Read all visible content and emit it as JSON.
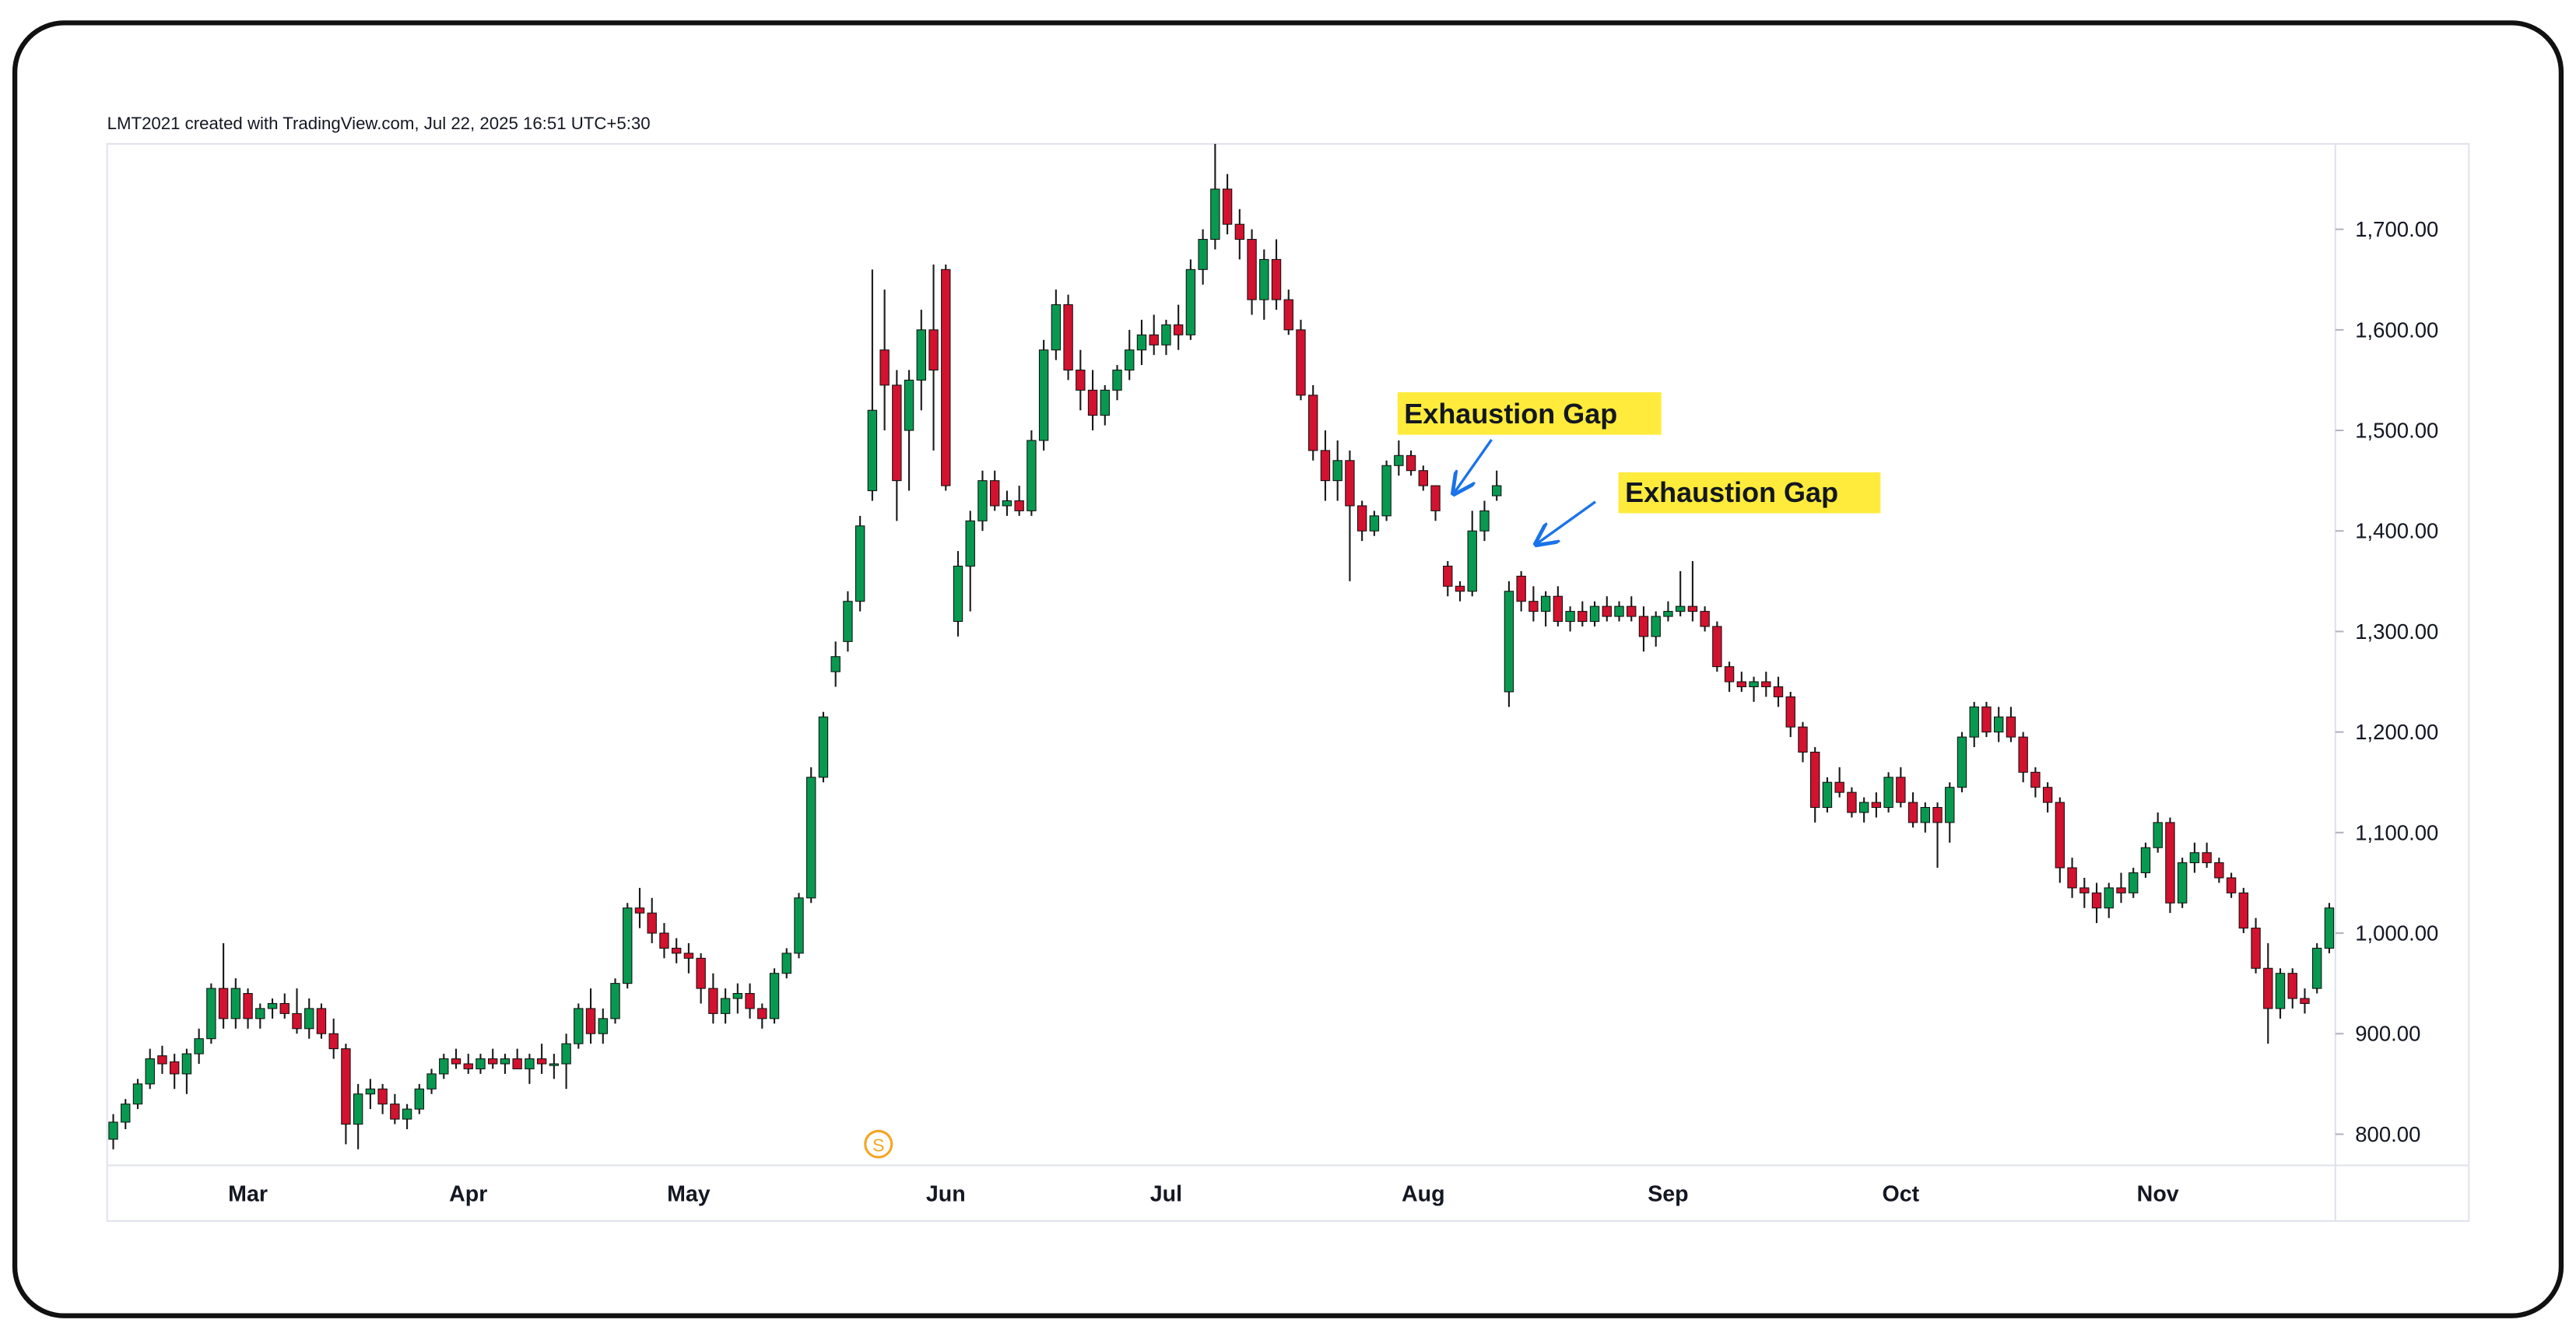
{
  "chart_data": {
    "type": "candlestick",
    "watermark": "LMT2021 created with TradingView.com, Jul 22, 2025 16:51 UTC+5:30",
    "annotations": [
      "Exhaustion Gap",
      "Exhaustion Gap"
    ],
    "up_color": "#089950",
    "down_color": "#d2122e",
    "wick_color": "#1a1a1a",
    "border_color": "#111111",
    "grid": false,
    "ylim": [
      769,
      1785
    ],
    "yticks": [
      {
        "value": 800,
        "label": "800.00"
      },
      {
        "value": 900,
        "label": "900.00"
      },
      {
        "value": 1000,
        "label": "1,000.00"
      },
      {
        "value": 1100,
        "label": "1,100.00"
      },
      {
        "value": 1200,
        "label": "1,200.00"
      },
      {
        "value": 1300,
        "label": "1,300.00"
      },
      {
        "value": 1400,
        "label": "1,400.00"
      },
      {
        "value": 1500,
        "label": "1,500.00"
      },
      {
        "value": 1600,
        "label": "1,600.00"
      },
      {
        "value": 1700,
        "label": "1,700.00"
      }
    ],
    "categories": [
      null,
      null,
      null,
      null,
      null,
      null,
      null,
      null,
      null,
      null,
      null,
      "Mar",
      null,
      null,
      null,
      null,
      null,
      null,
      null,
      null,
      null,
      null,
      null,
      null,
      null,
      null,
      null,
      null,
      null,
      "Apr",
      null,
      null,
      null,
      null,
      null,
      null,
      null,
      null,
      null,
      null,
      null,
      null,
      null,
      null,
      null,
      null,
      null,
      "May",
      null,
      null,
      null,
      null,
      null,
      null,
      null,
      null,
      null,
      null,
      null,
      null,
      null,
      null,
      null,
      null,
      null,
      null,
      null,
      null,
      "Jun",
      null,
      null,
      null,
      null,
      null,
      null,
      null,
      null,
      null,
      null,
      null,
      null,
      null,
      null,
      null,
      null,
      null,
      "Jul",
      null,
      null,
      null,
      null,
      null,
      null,
      null,
      null,
      null,
      null,
      null,
      null,
      null,
      null,
      null,
      null,
      null,
      null,
      null,
      null,
      "Aug",
      null,
      null,
      null,
      null,
      null,
      null,
      null,
      null,
      null,
      null,
      null,
      null,
      null,
      null,
      null,
      null,
      null,
      null,
      null,
      "Sep",
      null,
      null,
      null,
      null,
      null,
      null,
      null,
      null,
      null,
      null,
      null,
      null,
      null,
      null,
      null,
      null,
      null,
      null,
      "Oct",
      null,
      null,
      null,
      null,
      null,
      null,
      null,
      null,
      null,
      null,
      null,
      null,
      null,
      null,
      null,
      null,
      null,
      null,
      null,
      null,
      "Nov",
      null,
      null,
      null,
      null,
      null,
      null,
      null,
      null,
      null,
      null,
      null,
      null,
      null,
      null
    ],
    "ohlc": [
      [
        795,
        820,
        785,
        812
      ],
      [
        812,
        835,
        805,
        830
      ],
      [
        830,
        855,
        825,
        850
      ],
      [
        850,
        885,
        845,
        875
      ],
      [
        878,
        888,
        860,
        870
      ],
      [
        872,
        880,
        845,
        860
      ],
      [
        860,
        885,
        840,
        880
      ],
      [
        880,
        905,
        870,
        895
      ],
      [
        895,
        950,
        890,
        945
      ],
      [
        945,
        990,
        905,
        915
      ],
      [
        915,
        955,
        905,
        945
      ],
      [
        940,
        945,
        905,
        915
      ],
      [
        915,
        930,
        905,
        925
      ],
      [
        925,
        935,
        915,
        930
      ],
      [
        930,
        940,
        915,
        920
      ],
      [
        920,
        945,
        900,
        905
      ],
      [
        905,
        935,
        895,
        925
      ],
      [
        925,
        930,
        895,
        900
      ],
      [
        900,
        915,
        875,
        885
      ],
      [
        885,
        890,
        790,
        810
      ],
      [
        810,
        850,
        785,
        840
      ],
      [
        840,
        855,
        825,
        845
      ],
      [
        845,
        850,
        820,
        830
      ],
      [
        830,
        840,
        810,
        815
      ],
      [
        815,
        830,
        805,
        825
      ],
      [
        825,
        850,
        820,
        845
      ],
      [
        845,
        865,
        840,
        860
      ],
      [
        860,
        880,
        855,
        875
      ],
      [
        875,
        885,
        865,
        870
      ],
      [
        870,
        880,
        860,
        865
      ],
      [
        865,
        880,
        860,
        875
      ],
      [
        875,
        885,
        865,
        870
      ],
      [
        870,
        880,
        860,
        875
      ],
      [
        875,
        885,
        865,
        865
      ],
      [
        865,
        880,
        850,
        875
      ],
      [
        875,
        890,
        860,
        870
      ],
      [
        870,
        880,
        855,
        870
      ],
      [
        870,
        900,
        845,
        890
      ],
      [
        890,
        930,
        885,
        925
      ],
      [
        925,
        945,
        890,
        900
      ],
      [
        900,
        925,
        890,
        915
      ],
      [
        915,
        955,
        910,
        950
      ],
      [
        950,
        1030,
        945,
        1025
      ],
      [
        1025,
        1045,
        1005,
        1020
      ],
      [
        1020,
        1035,
        990,
        1000
      ],
      [
        1000,
        1010,
        975,
        985
      ],
      [
        985,
        995,
        970,
        980
      ],
      [
        980,
        990,
        960,
        975
      ],
      [
        975,
        980,
        930,
        945
      ],
      [
        945,
        960,
        910,
        920
      ],
      [
        920,
        945,
        910,
        935
      ],
      [
        935,
        950,
        920,
        940
      ],
      [
        940,
        950,
        915,
        925
      ],
      [
        925,
        930,
        905,
        915
      ],
      [
        915,
        965,
        910,
        960
      ],
      [
        960,
        985,
        955,
        980
      ],
      [
        980,
        1040,
        975,
        1035
      ],
      [
        1035,
        1165,
        1030,
        1155
      ],
      [
        1155,
        1220,
        1150,
        1215
      ],
      [
        1260,
        1290,
        1245,
        1275
      ],
      [
        1290,
        1340,
        1280,
        1330
      ],
      [
        1330,
        1415,
        1320,
        1405
      ],
      [
        1440,
        1660,
        1430,
        1520
      ],
      [
        1580,
        1640,
        1500,
        1545
      ],
      [
        1545,
        1560,
        1410,
        1450
      ],
      [
        1500,
        1560,
        1440,
        1550
      ],
      [
        1550,
        1620,
        1520,
        1600
      ],
      [
        1600,
        1665,
        1480,
        1560
      ],
      [
        1660,
        1665,
        1440,
        1445
      ],
      [
        1310,
        1380,
        1295,
        1365
      ],
      [
        1365,
        1420,
        1320,
        1410
      ],
      [
        1410,
        1460,
        1400,
        1450
      ],
      [
        1450,
        1460,
        1420,
        1425
      ],
      [
        1425,
        1440,
        1415,
        1430
      ],
      [
        1430,
        1445,
        1415,
        1420
      ],
      [
        1420,
        1500,
        1415,
        1490
      ],
      [
        1490,
        1590,
        1480,
        1580
      ],
      [
        1580,
        1640,
        1570,
        1625
      ],
      [
        1625,
        1635,
        1550,
        1560
      ],
      [
        1560,
        1580,
        1520,
        1540
      ],
      [
        1540,
        1560,
        1500,
        1515
      ],
      [
        1515,
        1545,
        1505,
        1540
      ],
      [
        1540,
        1565,
        1530,
        1560
      ],
      [
        1560,
        1600,
        1550,
        1580
      ],
      [
        1580,
        1610,
        1565,
        1595
      ],
      [
        1595,
        1615,
        1575,
        1585
      ],
      [
        1585,
        1610,
        1575,
        1605
      ],
      [
        1605,
        1625,
        1580,
        1595
      ],
      [
        1595,
        1670,
        1590,
        1660
      ],
      [
        1660,
        1700,
        1645,
        1690
      ],
      [
        1690,
        1785,
        1680,
        1740
      ],
      [
        1740,
        1755,
        1695,
        1705
      ],
      [
        1705,
        1720,
        1670,
        1690
      ],
      [
        1690,
        1700,
        1615,
        1630
      ],
      [
        1630,
        1680,
        1610,
        1670
      ],
      [
        1670,
        1690,
        1620,
        1630
      ],
      [
        1630,
        1640,
        1595,
        1600
      ],
      [
        1600,
        1610,
        1530,
        1535
      ],
      [
        1535,
        1545,
        1470,
        1480
      ],
      [
        1480,
        1500,
        1430,
        1450
      ],
      [
        1450,
        1490,
        1430,
        1470
      ],
      [
        1470,
        1480,
        1350,
        1425
      ],
      [
        1425,
        1430,
        1390,
        1400
      ],
      [
        1400,
        1420,
        1395,
        1415
      ],
      [
        1415,
        1470,
        1410,
        1465
      ],
      [
        1465,
        1490,
        1455,
        1475
      ],
      [
        1475,
        1480,
        1455,
        1460
      ],
      [
        1460,
        1465,
        1440,
        1445
      ],
      [
        1445,
        1445,
        1410,
        1420
      ],
      [
        1365,
        1370,
        1335,
        1345
      ],
      [
        1345,
        1350,
        1330,
        1340
      ],
      [
        1340,
        1420,
        1335,
        1400
      ],
      [
        1400,
        1430,
        1390,
        1420
      ],
      [
        1435,
        1460,
        1430,
        1445
      ],
      [
        1240,
        1350,
        1225,
        1340
      ],
      [
        1355,
        1360,
        1320,
        1330
      ],
      [
        1330,
        1345,
        1310,
        1320
      ],
      [
        1320,
        1340,
        1305,
        1335
      ],
      [
        1335,
        1345,
        1305,
        1310
      ],
      [
        1310,
        1325,
        1300,
        1320
      ],
      [
        1320,
        1330,
        1305,
        1310
      ],
      [
        1310,
        1330,
        1305,
        1325
      ],
      [
        1325,
        1335,
        1310,
        1315
      ],
      [
        1315,
        1330,
        1310,
        1325
      ],
      [
        1325,
        1335,
        1310,
        1315
      ],
      [
        1315,
        1325,
        1280,
        1295
      ],
      [
        1295,
        1320,
        1285,
        1315
      ],
      [
        1315,
        1330,
        1310,
        1320
      ],
      [
        1320,
        1360,
        1315,
        1325
      ],
      [
        1325,
        1370,
        1310,
        1320
      ],
      [
        1320,
        1325,
        1300,
        1305
      ],
      [
        1305,
        1310,
        1260,
        1265
      ],
      [
        1265,
        1270,
        1240,
        1250
      ],
      [
        1250,
        1260,
        1240,
        1245
      ],
      [
        1245,
        1255,
        1230,
        1250
      ],
      [
        1250,
        1260,
        1235,
        1245
      ],
      [
        1245,
        1255,
        1225,
        1235
      ],
      [
        1235,
        1240,
        1195,
        1205
      ],
      [
        1205,
        1210,
        1170,
        1180
      ],
      [
        1180,
        1185,
        1110,
        1125
      ],
      [
        1125,
        1155,
        1120,
        1150
      ],
      [
        1150,
        1165,
        1135,
        1140
      ],
      [
        1140,
        1145,
        1115,
        1120
      ],
      [
        1120,
        1135,
        1110,
        1130
      ],
      [
        1130,
        1140,
        1115,
        1125
      ],
      [
        1125,
        1160,
        1120,
        1155
      ],
      [
        1155,
        1165,
        1125,
        1130
      ],
      [
        1130,
        1140,
        1105,
        1110
      ],
      [
        1110,
        1130,
        1100,
        1125
      ],
      [
        1125,
        1130,
        1065,
        1110
      ],
      [
        1110,
        1150,
        1090,
        1145
      ],
      [
        1145,
        1200,
        1140,
        1195
      ],
      [
        1195,
        1230,
        1185,
        1225
      ],
      [
        1225,
        1230,
        1195,
        1200
      ],
      [
        1200,
        1225,
        1190,
        1215
      ],
      [
        1215,
        1225,
        1190,
        1195
      ],
      [
        1195,
        1200,
        1150,
        1160
      ],
      [
        1160,
        1165,
        1135,
        1145
      ],
      [
        1145,
        1150,
        1120,
        1130
      ],
      [
        1130,
        1135,
        1050,
        1065
      ],
      [
        1065,
        1075,
        1035,
        1045
      ],
      [
        1045,
        1055,
        1025,
        1040
      ],
      [
        1040,
        1050,
        1010,
        1025
      ],
      [
        1025,
        1050,
        1015,
        1045
      ],
      [
        1045,
        1060,
        1030,
        1040
      ],
      [
        1040,
        1065,
        1035,
        1060
      ],
      [
        1060,
        1090,
        1055,
        1085
      ],
      [
        1085,
        1120,
        1080,
        1110
      ],
      [
        1110,
        1115,
        1020,
        1030
      ],
      [
        1030,
        1075,
        1025,
        1070
      ],
      [
        1070,
        1090,
        1060,
        1080
      ],
      [
        1080,
        1090,
        1065,
        1070
      ],
      [
        1070,
        1075,
        1050,
        1055
      ],
      [
        1055,
        1060,
        1035,
        1040
      ],
      [
        1040,
        1045,
        1000,
        1005
      ],
      [
        1005,
        1015,
        960,
        965
      ],
      [
        965,
        990,
        890,
        925
      ],
      [
        925,
        965,
        915,
        960
      ],
      [
        960,
        965,
        925,
        935
      ],
      [
        935,
        945,
        920,
        930
      ],
      [
        945,
        990,
        940,
        985
      ],
      [
        985,
        1030,
        980,
        1025
      ]
    ]
  }
}
